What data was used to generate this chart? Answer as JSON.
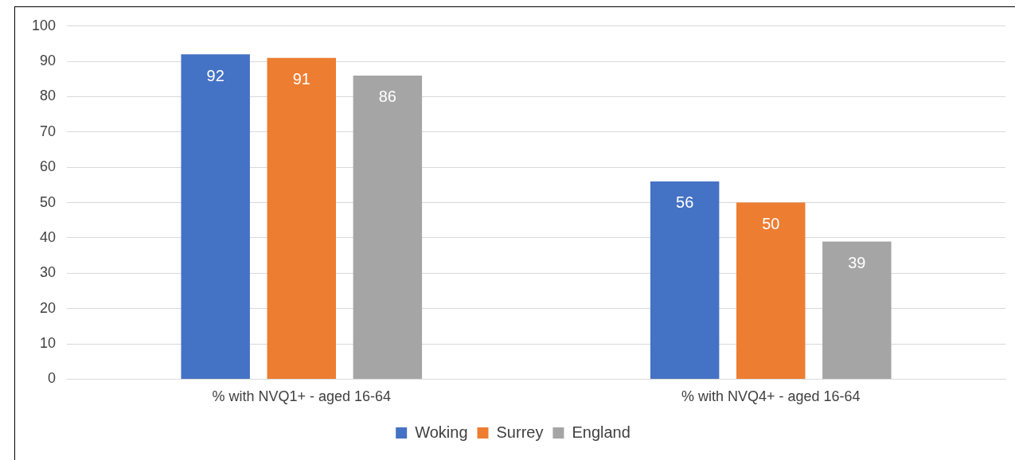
{
  "chart_data": {
    "type": "bar",
    "categories": [
      "% with NVQ1+ - aged 16-64",
      "% with NVQ4+ - aged 16-64"
    ],
    "series": [
      {
        "name": "Woking",
        "color": "#4472c4",
        "values": [
          92,
          56
        ]
      },
      {
        "name": "Surrey",
        "color": "#ed7d31",
        "values": [
          91,
          50
        ]
      },
      {
        "name": "England",
        "color": "#a5a5a5",
        "values": [
          86,
          39
        ]
      }
    ],
    "ylim": [
      0,
      100
    ],
    "yticks": [
      0,
      10,
      20,
      30,
      40,
      50,
      60,
      70,
      80,
      90,
      100
    ],
    "grid": "y",
    "legend": "bottom",
    "data_labels": true
  }
}
